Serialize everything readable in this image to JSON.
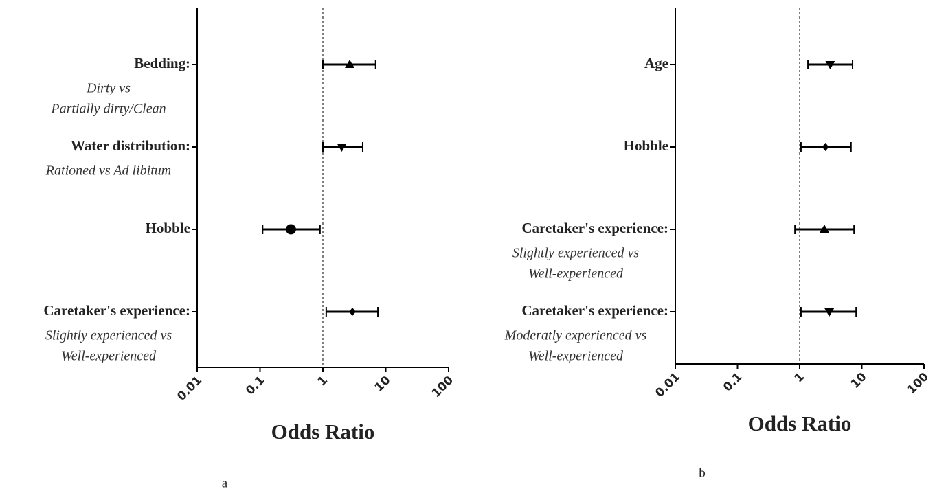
{
  "chart_data": [
    {
      "type": "forest",
      "xscale": "log",
      "xlim": [
        0.01,
        100
      ],
      "xticks": [
        0.01,
        0.1,
        1,
        10,
        100
      ],
      "refline": 1,
      "xlabel": "Odds Ratio",
      "caption": "a",
      "color": "#000000",
      "rows": [
        {
          "label": "Bedding:",
          "sublabel": [
            "Dirty vs",
            "Partially dirty/Clean"
          ],
          "value": 2.67,
          "lower": 1.0,
          "upper": 6.9,
          "marker": "triangle-up"
        },
        {
          "label": "Water distribution:",
          "sublabel": [
            "Rationed vs Ad libitum"
          ],
          "value": 2.0,
          "lower": 1.0,
          "upper": 4.3,
          "marker": "triangle-down"
        },
        {
          "label": "Hobble",
          "sublabel": [],
          "value": 0.31,
          "lower": 0.11,
          "upper": 0.9,
          "marker": "circle"
        },
        {
          "label": "Caretaker's experience:",
          "sublabel": [
            "Slightly experienced vs",
            "Well-experienced"
          ],
          "value": 2.95,
          "lower": 1.13,
          "upper": 7.5,
          "marker": "diamond"
        }
      ]
    },
    {
      "type": "forest",
      "xscale": "log",
      "xlim": [
        0.01,
        100
      ],
      "xticks": [
        0.01,
        0.1,
        1,
        10,
        100
      ],
      "refline": 1,
      "xlabel": "Odds Ratio",
      "caption": "b",
      "color": "#000000",
      "rows": [
        {
          "label": "Age",
          "sublabel": [],
          "value": 3.1,
          "lower": 1.36,
          "upper": 7.1,
          "marker": "triangle-down"
        },
        {
          "label": "Hobble",
          "sublabel": [],
          "value": 2.6,
          "lower": 1.05,
          "upper": 6.7,
          "marker": "diamond"
        },
        {
          "label": "Caretaker's experience:",
          "sublabel": [
            "Slightly experienced vs",
            "Well-experienced"
          ],
          "value": 2.5,
          "lower": 0.84,
          "upper": 7.5,
          "marker": "triangle-up"
        },
        {
          "label": "Caretaker's experience:",
          "sublabel": [
            "Moderatly experienced vs",
            "Well-experienced"
          ],
          "value": 3.0,
          "lower": 1.05,
          "upper": 8.1,
          "marker": "triangle-down"
        }
      ]
    }
  ]
}
